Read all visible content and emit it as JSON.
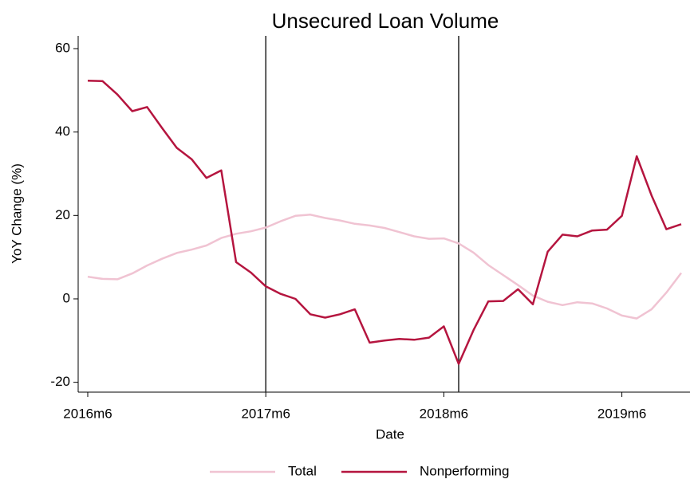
{
  "chart_data": {
    "type": "line",
    "title": "Unsecured Loan Volume",
    "x_label": "Date",
    "y_label": "YoY Change (%)",
    "categories": [
      "2016m6",
      "2016m7",
      "2016m8",
      "2016m9",
      "2016m10",
      "2016m11",
      "2016m12",
      "2017m1",
      "2017m2",
      "2017m3",
      "2017m4",
      "2017m5",
      "2017m6",
      "2017m7",
      "2017m8",
      "2017m9",
      "2017m10",
      "2017m11",
      "2017m12",
      "2018m1",
      "2018m2",
      "2018m3",
      "2018m4",
      "2018m5",
      "2018m6",
      "2018m7",
      "2018m8",
      "2018m9",
      "2018m10",
      "2018m11",
      "2018m12",
      "2019m1",
      "2019m2",
      "2019m3",
      "2019m4",
      "2019m5",
      "2019m6",
      "2019m7",
      "2019m8",
      "2019m9",
      "2019m10"
    ],
    "xticks": [
      "2016m6",
      "2017m6",
      "2018m6",
      "2019m6"
    ],
    "vlines": [
      "2017m6",
      "2018m7"
    ],
    "ylim": [
      -22,
      63
    ],
    "yticks": [
      -20,
      0,
      20,
      40,
      60
    ],
    "grid": false,
    "legend": "bottom",
    "series": [
      {
        "name": "Total",
        "color": "#f0c3d2",
        "values": [
          5.3,
          4.8,
          4.7,
          6.1,
          8,
          9.6,
          11,
          11.8,
          12.8,
          14.6,
          15.6,
          16.2,
          17.1,
          18.6,
          19.9,
          20.2,
          19.4,
          18.8,
          18,
          17.6,
          17,
          16,
          15,
          14.4,
          14.5,
          13.3,
          11.1,
          8.1,
          5.7,
          3.3,
          0.8,
          -0.7,
          -1.5,
          -0.8,
          -1.1,
          -2.3,
          -4,
          -4.7,
          -2.5,
          1.5,
          6.2
        ]
      },
      {
        "name": "Nonperforming",
        "color": "#b5153f",
        "values": [
          52.3,
          52.2,
          49,
          45,
          46,
          41,
          36.2,
          33.5,
          29,
          30.8,
          8.8,
          6.3,
          3,
          1.2,
          0,
          -3.7,
          -4.5,
          -3.7,
          -2.5,
          -10.5,
          -10,
          -9.6,
          -9.8,
          -9.3,
          -6.6,
          -15.6,
          -7.5,
          -0.6,
          -0.5,
          2.3,
          -1.3,
          11.3,
          15.4,
          15,
          16.4,
          16.6,
          19.9,
          34.2,
          24.8,
          16.7,
          17.9
        ]
      }
    ]
  }
}
